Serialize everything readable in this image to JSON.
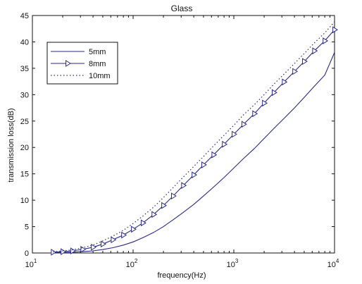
{
  "chart_data": {
    "type": "line",
    "title": "Glass",
    "xlabel": "frequency(Hz)",
    "ylabel": "transmission loss(dB)",
    "xscale": "log",
    "xlim": [
      10,
      10000
    ],
    "ylim": [
      0,
      45
    ],
    "xticks": [
      {
        "value": 10,
        "base": "10",
        "exp": "1"
      },
      {
        "value": 100,
        "base": "10",
        "exp": "2"
      },
      {
        "value": 1000,
        "base": "10",
        "exp": "3"
      },
      {
        "value": 10000,
        "base": "10",
        "exp": "4"
      }
    ],
    "yticks": [
      "0",
      "5",
      "10",
      "15",
      "20",
      "25",
      "30",
      "35",
      "40",
      "45"
    ],
    "grid": false,
    "legend": {
      "position": "top-left"
    },
    "colors": {
      "series": "#2a2a88",
      "axis": "#111111"
    },
    "series": [
      {
        "name": "5mm",
        "style": "solid",
        "marker": "none",
        "x": [
          16,
          20,
          25,
          31.5,
          40,
          50,
          63,
          80,
          100,
          125,
          160,
          200,
          250,
          315,
          400,
          500,
          630,
          800,
          1000,
          1250,
          1600,
          2000,
          2500,
          3150,
          4000,
          5000,
          6300,
          8000,
          10000
        ],
        "y": [
          0.05,
          0.1,
          0.15,
          0.25,
          0.4,
          0.65,
          1.0,
          1.5,
          2.1,
          2.9,
          3.9,
          5.0,
          6.3,
          7.7,
          9.2,
          10.8,
          12.5,
          14.3,
          16.1,
          17.9,
          19.8,
          21.7,
          23.6,
          25.5,
          27.5,
          29.5,
          31.6,
          33.7,
          38.0
        ]
      },
      {
        "name": "8mm",
        "style": "solid",
        "marker": "triangle-right",
        "x": [
          16,
          20,
          25,
          31.5,
          40,
          50,
          63,
          80,
          100,
          125,
          160,
          200,
          250,
          315,
          400,
          500,
          630,
          800,
          1000,
          1250,
          1600,
          2000,
          2500,
          3150,
          4000,
          5000,
          6300,
          8000,
          10000
        ],
        "y": [
          0.15,
          0.25,
          0.4,
          0.7,
          1.1,
          1.7,
          2.5,
          3.4,
          4.5,
          5.7,
          7.3,
          9.0,
          10.8,
          12.8,
          14.8,
          16.7,
          18.6,
          20.6,
          22.5,
          24.4,
          26.4,
          28.4,
          30.4,
          32.4,
          34.4,
          36.3,
          38.3,
          40.2,
          42.3
        ]
      },
      {
        "name": "10mm",
        "style": "dotted",
        "marker": "none",
        "x": [
          16,
          20,
          25,
          31.5,
          40,
          50,
          63,
          80,
          100,
          125,
          160,
          200,
          250,
          315,
          400,
          500,
          630,
          800,
          1000,
          1250,
          1600,
          2000,
          2500,
          3150,
          4000,
          5000,
          6300,
          8000,
          10000
        ],
        "y": [
          0.2,
          0.4,
          0.6,
          1.0,
          1.5,
          2.3,
          3.2,
          4.3,
          5.6,
          7.0,
          8.7,
          10.5,
          12.4,
          14.4,
          16.4,
          18.3,
          20.3,
          22.3,
          24.2,
          26.2,
          28.1,
          30.0,
          32.0,
          33.9,
          35.9,
          37.8,
          39.8,
          41.7,
          43.8
        ]
      }
    ]
  }
}
